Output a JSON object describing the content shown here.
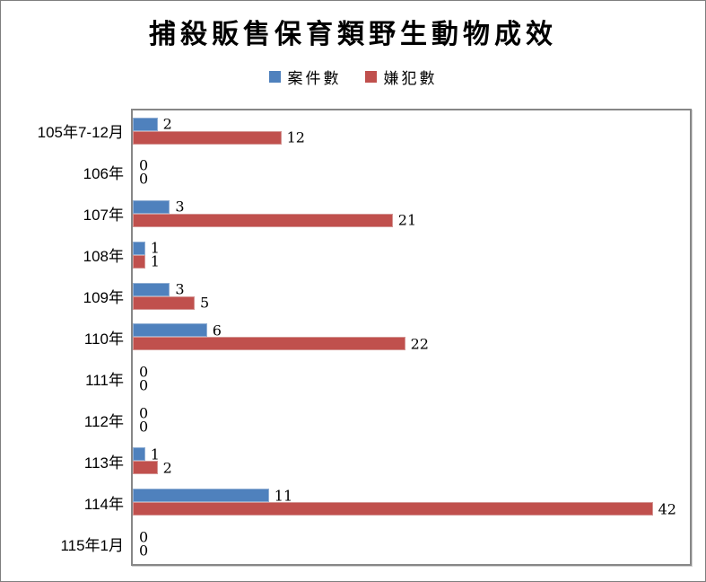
{
  "title": "捕殺販售保育類野生動物成效",
  "legend": {
    "items": [
      {
        "key": "cases",
        "label": "案件數",
        "color": "#4f81bd"
      },
      {
        "key": "suspects",
        "label": "嫌犯數",
        "color": "#c0504d"
      }
    ]
  },
  "chart_data": {
    "type": "bar",
    "orientation": "horizontal",
    "title": "捕殺販售保育類野生動物成效",
    "categories": [
      "105年7-12月",
      "106年",
      "107年",
      "108年",
      "109年",
      "110年",
      "111年",
      "112年",
      "113年",
      "114年",
      "115年1月"
    ],
    "series": [
      {
        "key": "cases",
        "name": "案件數",
        "color": "#4f81bd",
        "border_color": "#90aed3",
        "values": [
          2,
          0,
          3,
          1,
          3,
          6,
          0,
          0,
          1,
          11,
          0
        ]
      },
      {
        "key": "suspects",
        "name": "嫌犯數",
        "color": "#c0504d",
        "border_color": "#d49593",
        "values": [
          12,
          0,
          21,
          1,
          5,
          22,
          0,
          0,
          2,
          42,
          0
        ]
      }
    ],
    "xlim": [
      0,
      45
    ],
    "grid": false,
    "legend_position": "top",
    "data_labels": true
  }
}
